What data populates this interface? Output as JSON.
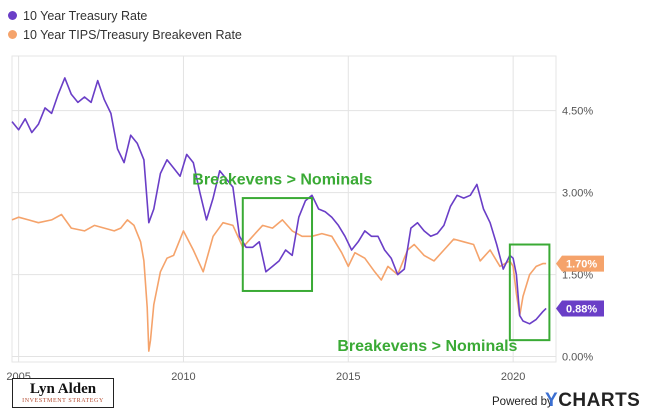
{
  "legend": [
    {
      "label": "10 Year Treasury Rate",
      "color": "#6a3ec7"
    },
    {
      "label": "10 Year TIPS/Treasury Breakeven Rate",
      "color": "#f5a36b"
    }
  ],
  "chart_data": {
    "type": "line",
    "x_ticks": [
      "2005",
      "2010",
      "2015",
      "2020"
    ],
    "y_ticks": [
      "0.00%",
      "1.50%",
      "3.00%",
      "4.50%"
    ],
    "y_tick_values": [
      0,
      1.5,
      3.0,
      4.5
    ],
    "xlim": [
      2004.8,
      2021.3
    ],
    "ylim": [
      -0.1,
      5.5
    ],
    "grid": true,
    "legend_position": "top-left",
    "series": [
      {
        "name": "10 Year Treasury Rate",
        "color": "#6a3ec7",
        "end_label": "0.88%",
        "x": [
          2004.8,
          2005.0,
          2005.2,
          2005.4,
          2005.6,
          2005.8,
          2006.0,
          2006.2,
          2006.4,
          2006.6,
          2006.8,
          2007.0,
          2007.2,
          2007.4,
          2007.6,
          2007.8,
          2008.0,
          2008.2,
          2008.4,
          2008.6,
          2008.8,
          2008.95,
          2009.1,
          2009.3,
          2009.5,
          2009.7,
          2009.9,
          2010.1,
          2010.3,
          2010.5,
          2010.7,
          2010.9,
          2011.1,
          2011.3,
          2011.5,
          2011.7,
          2011.9,
          2012.1,
          2012.3,
          2012.5,
          2012.7,
          2012.9,
          2013.1,
          2013.3,
          2013.5,
          2013.7,
          2013.9,
          2014.1,
          2014.3,
          2014.5,
          2014.7,
          2014.9,
          2015.1,
          2015.3,
          2015.5,
          2015.7,
          2015.9,
          2016.1,
          2016.3,
          2016.5,
          2016.7,
          2016.9,
          2017.1,
          2017.3,
          2017.5,
          2017.7,
          2017.9,
          2018.1,
          2018.3,
          2018.5,
          2018.7,
          2018.9,
          2019.1,
          2019.3,
          2019.5,
          2019.7,
          2019.9,
          2020.0,
          2020.1,
          2020.2,
          2020.3,
          2020.5,
          2020.7,
          2020.9,
          2021.0
        ],
        "values": [
          4.3,
          4.15,
          4.35,
          4.1,
          4.25,
          4.55,
          4.45,
          4.8,
          5.1,
          4.8,
          4.65,
          4.75,
          4.65,
          5.05,
          4.7,
          4.45,
          3.8,
          3.55,
          4.05,
          3.9,
          3.6,
          2.45,
          2.7,
          3.35,
          3.6,
          3.45,
          3.3,
          3.7,
          3.55,
          3.0,
          2.5,
          2.9,
          3.4,
          3.25,
          3.1,
          2.2,
          2.0,
          2.0,
          2.1,
          1.55,
          1.65,
          1.75,
          1.95,
          1.85,
          2.55,
          2.85,
          2.95,
          2.7,
          2.65,
          2.55,
          2.4,
          2.2,
          1.95,
          2.1,
          2.3,
          2.2,
          2.2,
          1.95,
          1.8,
          1.5,
          1.6,
          2.35,
          2.45,
          2.3,
          2.2,
          2.25,
          2.4,
          2.75,
          2.95,
          2.9,
          2.95,
          3.15,
          2.7,
          2.45,
          2.05,
          1.6,
          1.85,
          1.8,
          1.5,
          0.75,
          0.65,
          0.6,
          0.68,
          0.82,
          0.88
        ]
      },
      {
        "name": "10 Year TIPS/Treasury Breakeven Rate",
        "color": "#f5a36b",
        "end_label": "1.70%",
        "x": [
          2004.8,
          2005.0,
          2005.3,
          2005.6,
          2006.0,
          2006.3,
          2006.6,
          2007.0,
          2007.3,
          2007.6,
          2007.9,
          2008.1,
          2008.3,
          2008.5,
          2008.7,
          2008.8,
          2008.9,
          2008.95,
          2009.0,
          2009.1,
          2009.3,
          2009.5,
          2009.7,
          2010.0,
          2010.3,
          2010.6,
          2010.9,
          2011.2,
          2011.5,
          2011.8,
          2012.1,
          2012.4,
          2012.7,
          2013.0,
          2013.3,
          2013.6,
          2013.9,
          2014.2,
          2014.5,
          2014.8,
          2015.0,
          2015.2,
          2015.5,
          2015.8,
          2016.0,
          2016.2,
          2016.5,
          2016.8,
          2017.0,
          2017.3,
          2017.6,
          2017.9,
          2018.2,
          2018.5,
          2018.8,
          2019.0,
          2019.3,
          2019.6,
          2019.9,
          2020.0,
          2020.1,
          2020.2,
          2020.3,
          2020.5,
          2020.7,
          2020.9,
          2021.0
        ],
        "values": [
          2.5,
          2.55,
          2.5,
          2.45,
          2.5,
          2.6,
          2.35,
          2.3,
          2.4,
          2.35,
          2.3,
          2.35,
          2.5,
          2.4,
          2.1,
          1.75,
          0.9,
          0.1,
          0.3,
          0.95,
          1.55,
          1.8,
          1.85,
          2.3,
          1.95,
          1.55,
          2.2,
          2.45,
          2.4,
          2.0,
          2.2,
          2.4,
          2.35,
          2.5,
          2.3,
          2.2,
          2.2,
          2.25,
          2.2,
          1.9,
          1.65,
          1.9,
          1.8,
          1.55,
          1.4,
          1.65,
          1.5,
          1.95,
          2.05,
          1.85,
          1.75,
          1.95,
          2.15,
          2.1,
          2.05,
          1.75,
          1.95,
          1.65,
          1.75,
          1.65,
          1.15,
          0.75,
          1.1,
          1.5,
          1.65,
          1.7,
          1.7
        ]
      }
    ],
    "annotations": [
      {
        "text": "Breakevens > Nominals",
        "x": 2013.0,
        "y": 3.15
      },
      {
        "text": "Breakevens > Nominals",
        "x": 2017.4,
        "y": 0.1
      }
    ],
    "highlight_boxes": [
      {
        "x0": 2011.8,
        "x1": 2013.9,
        "y0": 1.2,
        "y1": 2.9,
        "color": "#3aaa35"
      },
      {
        "x0": 2019.9,
        "x1": 2021.1,
        "y0": 0.3,
        "y1": 2.05,
        "color": "#3aaa35"
      }
    ]
  },
  "branding": {
    "logo_name": "Lyn Alden",
    "logo_sub": "INVESTMENT STRATEGY",
    "powered_by": "Powered by",
    "brand_y": "Y",
    "brand_rest": "CHARTS"
  }
}
